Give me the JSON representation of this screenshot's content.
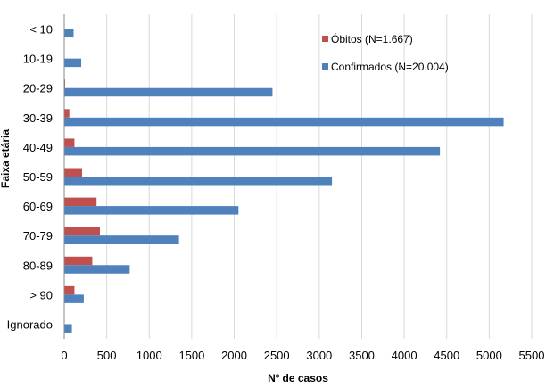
{
  "chart_data": {
    "type": "bar",
    "orientation": "horizontal",
    "categories": [
      "< 10",
      "10-19",
      "20-29",
      "30-39",
      "40-49",
      "50-59",
      "60-69",
      "70-79",
      "80-89",
      "> 90",
      "Ignorado"
    ],
    "series": [
      {
        "name": "Óbitos (N=1.667)",
        "color": "#C0504D",
        "values": [
          0,
          0,
          10,
          60,
          120,
          210,
          380,
          420,
          330,
          120,
          0
        ]
      },
      {
        "name": "Confirmados (N=20.004)",
        "color": "#4F81BD",
        "values": [
          110,
          200,
          2450,
          5170,
          4420,
          3150,
          2050,
          1350,
          770,
          230,
          90
        ]
      }
    ],
    "xlabel": "Nº de casos",
    "ylabel": "Faixa etária",
    "xlim": [
      0,
      5500
    ],
    "xticks": [
      0,
      500,
      1000,
      1500,
      2000,
      2500,
      3000,
      3500,
      4000,
      4500,
      5000,
      5500
    ],
    "grid": "vertical",
    "legend_position": "top-right"
  }
}
